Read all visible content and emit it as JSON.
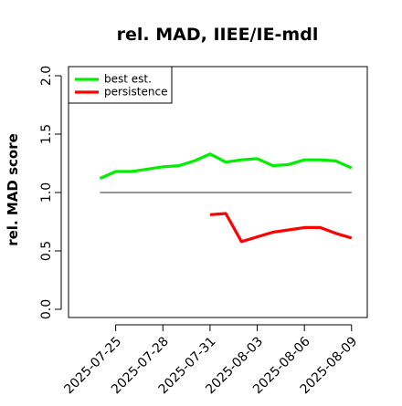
{
  "chart_data": {
    "type": "line",
    "title": "rel. MAD, IIEE/IE-mdl",
    "xlabel": "",
    "ylabel": "rel. MAD score",
    "ylim": [
      0.0,
      2.0
    ],
    "yticks": [
      0.0,
      0.5,
      1.0,
      1.5,
      2.0
    ],
    "ytick_labels": [
      "0.0",
      "0.5",
      "1.0",
      "1.5",
      "2.0"
    ],
    "xlim": [
      "2025-07-22",
      "2025-08-10"
    ],
    "xtick_dates": [
      "2025-07-25",
      "2025-07-28",
      "2025-07-31",
      "2025-08-03",
      "2025-08-06",
      "2025-08-09"
    ],
    "xtick_labels": [
      "2025-07-25",
      "2025-07-28",
      "2025-07-31",
      "2025-08-03",
      "2025-08-06",
      "2025-08-09"
    ],
    "grid": false,
    "legend": "top-left",
    "reference_line": {
      "y": 1.0,
      "from": "2025-07-24",
      "to": "2025-08-09",
      "color": "#555555"
    },
    "series": [
      {
        "name": "best est.",
        "color": "#00ee00",
        "x": [
          "2025-07-24",
          "2025-07-25",
          "2025-07-26",
          "2025-07-27",
          "2025-07-28",
          "2025-07-29",
          "2025-07-30",
          "2025-07-31",
          "2025-08-01",
          "2025-08-02",
          "2025-08-03",
          "2025-08-04",
          "2025-08-05",
          "2025-08-06",
          "2025-08-07",
          "2025-08-08",
          "2025-08-09"
        ],
        "values": [
          1.12,
          1.18,
          1.18,
          1.2,
          1.22,
          1.23,
          1.27,
          1.33,
          1.26,
          1.28,
          1.29,
          1.23,
          1.24,
          1.28,
          1.28,
          1.27,
          1.21
        ]
      },
      {
        "name": "persistence",
        "color": "#ff0000",
        "x": [
          "2025-07-31",
          "2025-08-01",
          "2025-08-02",
          "2025-08-03",
          "2025-08-04",
          "2025-08-05",
          "2025-08-06",
          "2025-08-07",
          "2025-08-08",
          "2025-08-09"
        ],
        "values": [
          0.81,
          0.82,
          0.58,
          0.62,
          0.66,
          0.68,
          0.7,
          0.7,
          0.65,
          0.61
        ]
      }
    ]
  }
}
